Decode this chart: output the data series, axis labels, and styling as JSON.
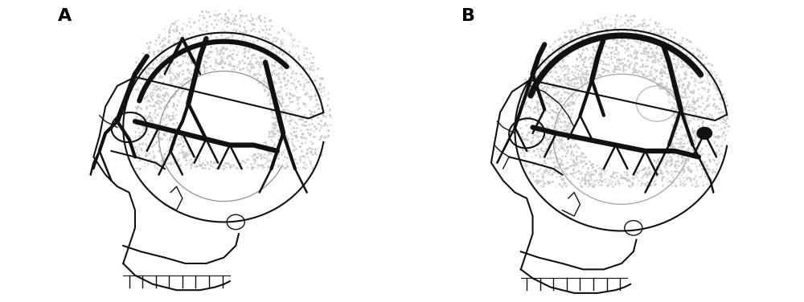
{
  "figure_width": 10.0,
  "figure_height": 3.76,
  "dpi": 100,
  "background_color": "#ffffff",
  "label_A": "A",
  "label_B": "B",
  "label_fontsize": 16,
  "label_fontweight": "bold",
  "image_data_b64": ""
}
